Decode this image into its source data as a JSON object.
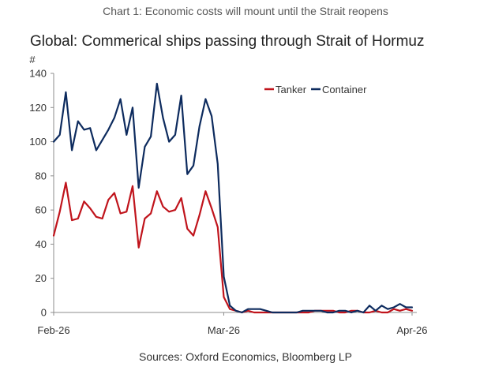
{
  "caption": "Chart 1: Economic costs will mount until the Strait reopens",
  "sources": "Sources: Oxford Economics, Bloomberg LP",
  "chart_data": {
    "type": "line",
    "title": "Global: Commerical ships passing through Strait of Hormuz",
    "ylabel": "#",
    "xlabel": "",
    "ylim": [
      0,
      140
    ],
    "yticks": [
      0,
      20,
      40,
      60,
      80,
      100,
      120,
      140
    ],
    "x_tick_labels": [
      {
        "label": "Feb-26",
        "index": 0
      },
      {
        "label": "Mar-26",
        "index": 28
      },
      {
        "label": "Apr-26",
        "index": 59
      }
    ],
    "grid": false,
    "legend_position": "top-right",
    "x": [
      0,
      1,
      2,
      3,
      4,
      5,
      6,
      7,
      8,
      9,
      10,
      11,
      12,
      13,
      14,
      15,
      16,
      17,
      18,
      19,
      20,
      21,
      22,
      23,
      24,
      25,
      26,
      27,
      28,
      29,
      30,
      31,
      32,
      33,
      34,
      35,
      36,
      37,
      38,
      39,
      40,
      41,
      42,
      43,
      44,
      45,
      46,
      47,
      48,
      49,
      50,
      51,
      52,
      53,
      54,
      55,
      56,
      57,
      58,
      59
    ],
    "series": [
      {
        "name": "Tanker",
        "color": "#c0141c",
        "values": [
          45,
          59,
          76,
          54,
          55,
          65,
          61,
          56,
          55,
          66,
          70,
          58,
          59,
          74,
          38,
          55,
          58,
          71,
          62,
          59,
          60,
          67,
          49,
          45,
          57,
          71,
          61,
          50,
          9,
          2,
          1,
          0,
          1,
          0,
          0,
          0,
          0,
          0,
          0,
          0,
          0,
          0,
          0,
          1,
          1,
          1,
          1,
          0,
          0,
          1,
          1,
          0,
          0,
          1,
          0,
          0,
          2,
          1,
          2,
          1
        ]
      },
      {
        "name": "Container",
        "color": "#0d2b5e",
        "values": [
          100,
          104,
          129,
          95,
          112,
          107,
          108,
          95,
          101,
          107,
          114,
          125,
          104,
          120,
          73,
          97,
          103,
          134,
          114,
          100,
          104,
          127,
          81,
          86,
          109,
          125,
          115,
          87,
          21,
          4,
          1,
          0,
          2,
          2,
          2,
          1,
          0,
          0,
          0,
          0,
          0,
          1,
          1,
          1,
          1,
          0,
          0,
          1,
          1,
          0,
          1,
          0,
          4,
          1,
          4,
          2,
          3,
          5,
          3,
          3
        ]
      }
    ]
  }
}
